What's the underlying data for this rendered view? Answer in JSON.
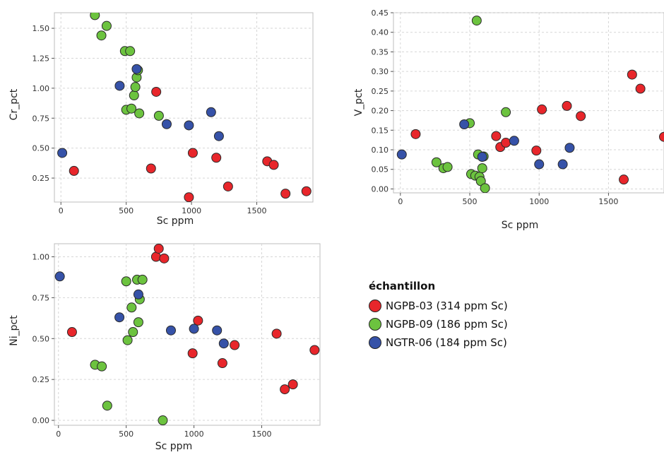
{
  "colors": {
    "NGPB-03": "#e8262b",
    "NGPB-09": "#6cc33f",
    "NGTR-06": "#3652a8"
  },
  "legend": {
    "title": "échantillon",
    "entries": [
      {
        "group": "NGPB-03",
        "label": "NGPB-03 (314 ppm Sc)"
      },
      {
        "group": "NGPB-09",
        "label": "NGPB-09 (186 ppm Sc)"
      },
      {
        "group": "NGTR-06",
        "label": "NGTR-06 (184 ppm Sc)"
      }
    ]
  },
  "chart_data": [
    {
      "type": "scatter",
      "xlabel": "Sc ppm",
      "ylabel": "Cr_pct",
      "xlim": [
        -50,
        1930
      ],
      "ylim": [
        0.05,
        1.63
      ],
      "xticks": [
        0,
        500,
        1000,
        1500
      ],
      "yticks": [
        0.25,
        0.5,
        0.75,
        1.0,
        1.25,
        1.5
      ],
      "ytick_labels": [
        "0.25",
        "0.50",
        "0.75",
        "1.00",
        "1.25",
        "1.50"
      ],
      "grid": true,
      "series": [
        {
          "name": "NGPB-03",
          "x": [
            100,
            690,
            730,
            980,
            1010,
            1190,
            1280,
            1580,
            1630,
            1720,
            1880
          ],
          "y": [
            0.31,
            0.33,
            0.97,
            0.09,
            0.46,
            0.42,
            0.18,
            0.39,
            0.36,
            0.12,
            0.14
          ]
        },
        {
          "name": "NGPB-09",
          "x": [
            260,
            310,
            350,
            490,
            500,
            530,
            540,
            560,
            570,
            580,
            590,
            600,
            750
          ],
          "y": [
            1.61,
            1.44,
            1.52,
            1.31,
            0.82,
            1.31,
            0.83,
            0.94,
            1.01,
            1.09,
            1.15,
            0.79,
            0.77
          ]
        },
        {
          "name": "NGTR-06",
          "x": [
            10,
            450,
            580,
            810,
            980,
            1150,
            1210
          ],
          "y": [
            0.46,
            1.02,
            1.16,
            0.7,
            0.69,
            0.8,
            0.6
          ]
        }
      ]
    },
    {
      "type": "scatter",
      "xlabel": "Sc ppm",
      "ylabel": "V_pct",
      "xlim": [
        -50,
        1900
      ],
      "ylim": [
        -0.01,
        0.45
      ],
      "xticks": [
        0,
        500,
        1000,
        1500
      ],
      "yticks": [
        0.0,
        0.05,
        0.1,
        0.15,
        0.2,
        0.25,
        0.3,
        0.35,
        0.4,
        0.45
      ],
      "ytick_labels": [
        "0.00",
        "0.05",
        "0.10",
        "0.15",
        "0.20",
        "0.25",
        "0.30",
        "0.35",
        "0.40",
        "0.45"
      ],
      "grid": true,
      "series": [
        {
          "name": "NGPB-03",
          "x": [
            110,
            690,
            720,
            760,
            980,
            1020,
            1200,
            1300,
            1610,
            1670,
            1730,
            1900
          ],
          "y": [
            0.14,
            0.135,
            0.107,
            0.118,
            0.098,
            0.203,
            0.212,
            0.186,
            0.024,
            0.292,
            0.256,
            0.133
          ]
        },
        {
          "name": "NGPB-09",
          "x": [
            260,
            310,
            340,
            500,
            510,
            540,
            550,
            560,
            570,
            580,
            590,
            600,
            610,
            760
          ],
          "y": [
            0.068,
            0.053,
            0.056,
            0.168,
            0.038,
            0.034,
            0.43,
            0.088,
            0.031,
            0.02,
            0.053,
            0.083,
            0.002,
            0.196
          ]
        },
        {
          "name": "NGTR-06",
          "x": [
            10,
            460,
            590,
            820,
            1000,
            1170,
            1220
          ],
          "y": [
            0.088,
            0.165,
            0.082,
            0.123,
            0.063,
            0.063,
            0.105
          ]
        }
      ]
    },
    {
      "type": "scatter",
      "xlabel": "Sc ppm",
      "ylabel": "Ni_pct",
      "xlim": [
        -30,
        1930
      ],
      "ylim": [
        -0.03,
        1.08
      ],
      "xticks": [
        0,
        500,
        1000,
        1500
      ],
      "yticks": [
        0.0,
        0.25,
        0.5,
        0.75,
        1.0
      ],
      "ytick_labels": [
        "0.00",
        "0.25",
        "0.50",
        "0.75",
        "1.00"
      ],
      "grid": true,
      "series": [
        {
          "name": "NGPB-03",
          "x": [
            100,
            720,
            740,
            780,
            990,
            1030,
            1210,
            1300,
            1610,
            1670,
            1730,
            1890
          ],
          "y": [
            0.54,
            1.0,
            1.05,
            0.99,
            0.41,
            0.61,
            0.35,
            0.46,
            0.53,
            0.19,
            0.22,
            0.43
          ]
        },
        {
          "name": "NGPB-09",
          "x": [
            270,
            320,
            360,
            500,
            510,
            540,
            550,
            580,
            590,
            600,
            620,
            770
          ],
          "y": [
            0.34,
            0.33,
            0.09,
            0.85,
            0.49,
            0.69,
            0.54,
            0.86,
            0.6,
            0.74,
            0.86,
            0.0
          ]
        },
        {
          "name": "NGTR-06",
          "x": [
            10,
            450,
            590,
            830,
            1000,
            1170,
            1220
          ],
          "y": [
            0.88,
            0.63,
            0.77,
            0.55,
            0.56,
            0.55,
            0.47
          ]
        }
      ]
    }
  ]
}
